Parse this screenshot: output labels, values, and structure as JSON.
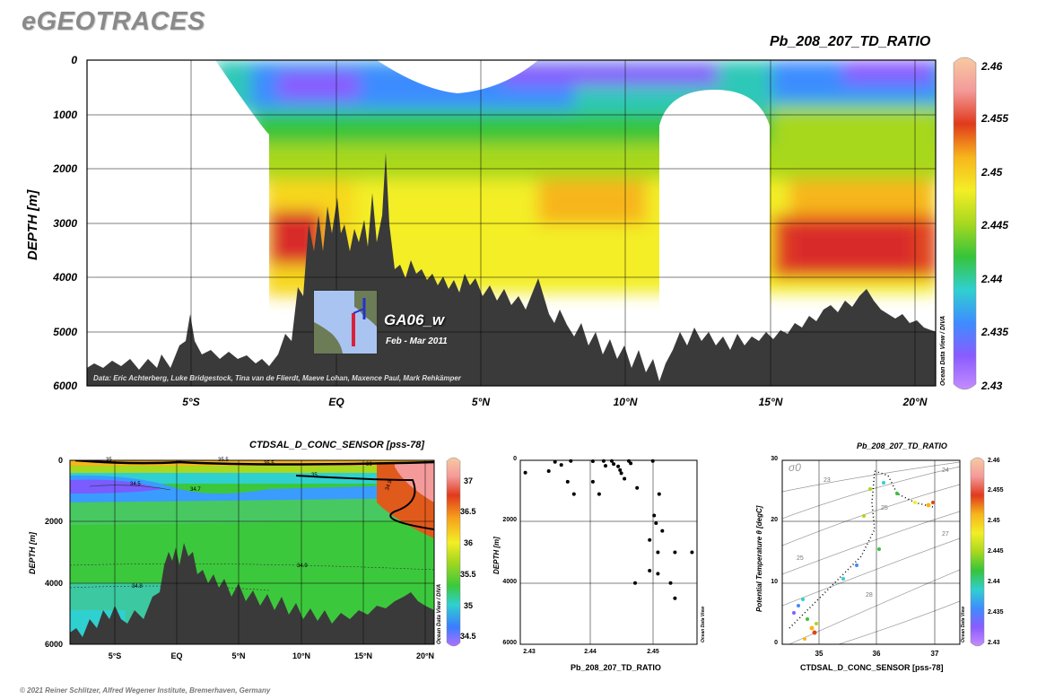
{
  "header": {
    "logo": "eGEOTRACES",
    "main_title": "Pb_208_207_TD_RATIO",
    "copyright": "© 2021 Reiner Schlitzer, Alfred Wegener Institute, Bremerhaven, Germany"
  },
  "main_panel": {
    "ylabel": "DEPTH [m]",
    "yticks": [
      "0",
      "1000",
      "2000",
      "3000",
      "4000",
      "5000",
      "6000"
    ],
    "xticks": [
      "5°S",
      "EQ",
      "5°N",
      "10°N",
      "15°N",
      "20°N"
    ],
    "cruise": "GA06_w",
    "period": "Feb - Mar 2011",
    "credits": "Data: Eric Achterberg, Luke Bridgestock, Tina van de Flierdt, Maeve Lohan, Maxence Paul, Mark Rehkämper",
    "odv": "Ocean Data View / DIVA",
    "colorbar_ticks": [
      "2.46",
      "2.455",
      "2.45",
      "2.445",
      "2.44",
      "2.435",
      "2.43"
    ]
  },
  "salinity_panel": {
    "title": "CTDSAL_D_CONC_SENSOR [pss-78]",
    "ylabel": "DEPTH [m]",
    "yticks": [
      "0",
      "2000",
      "4000",
      "6000"
    ],
    "xticks": [
      "5°S",
      "EQ",
      "5°N",
      "10°N",
      "15°N",
      "20°N"
    ],
    "contour_labels": [
      "35",
      "35.5",
      "35.5",
      "36",
      "34.5",
      "34.7",
      "35",
      "34.9",
      "34.8",
      "34.9"
    ],
    "odv": "Ocean Data View / DIVA",
    "colorbar_ticks": [
      "37",
      "36.5",
      "36",
      "35.5",
      "35",
      "34.5"
    ]
  },
  "scatter_panel": {
    "xlabel": "Pb_208_207_TD_RATIO",
    "ylabel": "DEPTH [m]",
    "yticks": [
      "0",
      "2000",
      "4000",
      "6000"
    ],
    "xticks": [
      "2.43",
      "2.44",
      "2.45"
    ],
    "odv": "Ocean Data View"
  },
  "ts_panel": {
    "title": "Pb_208_207_TD_RATIO",
    "xlabel": "CTDSAL_D_CONC_SENSOR [pss-78]",
    "ylabel": "Potential Temperature θ [degC]",
    "yticks": [
      "0",
      "10",
      "20",
      "30"
    ],
    "xticks": [
      "35",
      "36",
      "37"
    ],
    "sigma": "σ0",
    "isopycnal_labels": [
      "23",
      "24",
      "25",
      "25",
      "26",
      "27",
      "28"
    ],
    "odv": "Ocean Data View",
    "colorbar_ticks": [
      "2.46",
      "2.455",
      "2.45",
      "2.445",
      "2.44",
      "2.435",
      "2.43"
    ]
  },
  "chart_data": [
    {
      "type": "heatmap",
      "title": "Pb_208_207_TD_RATIO",
      "xlabel": "",
      "ylabel": "DEPTH [m]",
      "xlim": [
        -8.5,
        21.5
      ],
      "ylim": [
        6000,
        0
      ],
      "colorbar_range": [
        2.43,
        2.46
      ],
      "colormap": [
        "#c58cff",
        "#6f5cff",
        "#3e8cff",
        "#2fd0d0",
        "#39c84a",
        "#a8d81f",
        "#f3ee25",
        "#f7b51c",
        "#f06a1c",
        "#d92b2b",
        "#f7a4a4",
        "#f7c9a2"
      ],
      "ocean_bathymetry_color": "#3a3a3a",
      "stations_approx_lat": [
        -2,
        0.5,
        3,
        5.5,
        8,
        13.5,
        17.5,
        20.5
      ]
    },
    {
      "type": "heatmap",
      "title": "CTDSAL_D_CONC_SENSOR [pss-78]",
      "ylabel": "DEPTH [m]",
      "xlim": [
        -8.5,
        21.5
      ],
      "ylim": [
        6000,
        0
      ],
      "colorbar_range": [
        34.4,
        37.2
      ]
    },
    {
      "type": "scatter",
      "xlabel": "Pb_208_207_TD_RATIO",
      "ylabel": "DEPTH [m]",
      "xlim": [
        2.43,
        2.458
      ],
      "ylim": [
        6000,
        0
      ],
      "points": [
        [
          2.4308,
          400
        ],
        [
          2.4355,
          50
        ],
        [
          2.4365,
          150
        ],
        [
          2.438,
          20
        ],
        [
          2.4375,
          700
        ],
        [
          2.4385,
          1100
        ],
        [
          2.4345,
          350
        ],
        [
          2.4415,
          30
        ],
        [
          2.4432,
          20
        ],
        [
          2.4435,
          180
        ],
        [
          2.4445,
          20
        ],
        [
          2.4448,
          120
        ],
        [
          2.4455,
          200
        ],
        [
          2.4458,
          320
        ],
        [
          2.446,
          420
        ],
        [
          2.4465,
          600
        ],
        [
          2.4472,
          20
        ],
        [
          2.4475,
          100
        ],
        [
          2.4485,
          900
        ],
        [
          2.4415,
          700
        ],
        [
          2.4425,
          1100
        ],
        [
          2.4482,
          4000
        ],
        [
          2.451,
          20
        ],
        [
          2.4512,
          1800
        ],
        [
          2.4515,
          2050
        ],
        [
          2.4505,
          2600
        ],
        [
          2.4518,
          3000
        ],
        [
          2.4518,
          3700
        ],
        [
          2.4525,
          2300
        ],
        [
          2.4538,
          4000
        ],
        [
          2.4545,
          4500
        ],
        [
          2.4545,
          3000
        ],
        [
          2.4572,
          3000
        ],
        [
          2.452,
          1100
        ],
        [
          2.4505,
          3600
        ]
      ]
    },
    {
      "type": "scatter",
      "xlabel": "CTDSAL_D_CONC_SENSOR [pss-78]",
      "ylabel": "Potential Temperature θ [degC]",
      "xlim": [
        34.6,
        37.3
      ],
      "ylim": [
        0,
        30
      ],
      "colorbar_range": [
        2.43,
        2.46
      ],
      "points_note": "colored by Pb_208_207_TD_RATIO"
    }
  ]
}
